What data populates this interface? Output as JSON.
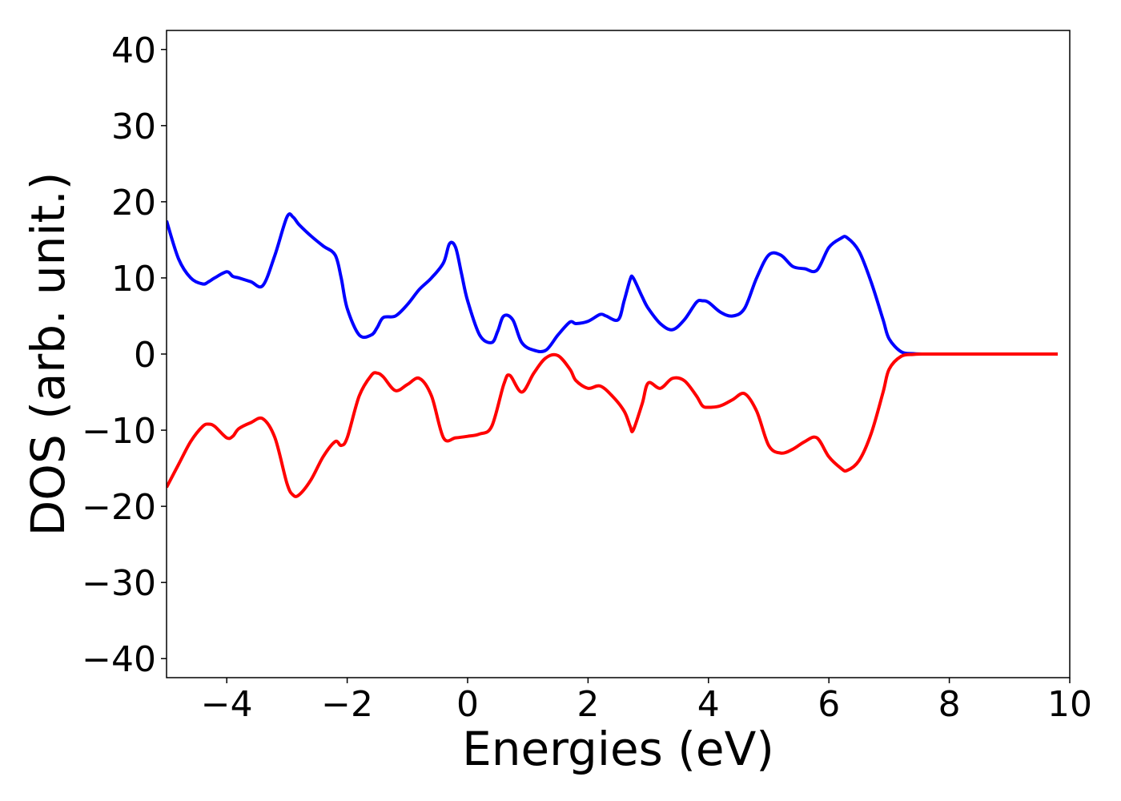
{
  "chart_data": {
    "type": "line",
    "title": "",
    "xlabel": "Energies (eV)",
    "ylabel": "DOS (arb. unit.)",
    "xlim": [
      -5,
      10
    ],
    "ylim": [
      -42.5,
      42.5
    ],
    "xticks": [
      -4,
      -2,
      0,
      2,
      4,
      6,
      8,
      10
    ],
    "xtick_labels": [
      "−4",
      "−2",
      "0",
      "2",
      "4",
      "6",
      "8",
      "10"
    ],
    "yticks": [
      40,
      30,
      20,
      10,
      0,
      -10,
      -20,
      -30,
      -40
    ],
    "ytick_labels": [
      "40",
      "30",
      "20",
      "10",
      "0",
      "−10",
      "−20",
      "−30",
      "−40"
    ],
    "grid": false,
    "legend": "none",
    "series": [
      {
        "color": "#0000ff",
        "x": [
          -5.0,
          -4.8,
          -4.6,
          -4.4,
          -4.3,
          -4.2,
          -4.0,
          -3.9,
          -3.8,
          -3.6,
          -3.4,
          -3.2,
          -3.0,
          -2.9,
          -2.8,
          -2.6,
          -2.4,
          -2.2,
          -2.1,
          -2.0,
          -1.8,
          -1.6,
          -1.5,
          -1.4,
          -1.2,
          -1.0,
          -0.8,
          -0.6,
          -0.4,
          -0.3,
          -0.2,
          -0.1,
          0.0,
          0.2,
          0.4,
          0.5,
          0.6,
          0.75,
          0.9,
          1.1,
          1.3,
          1.5,
          1.7,
          1.8,
          2.0,
          2.2,
          2.3,
          2.5,
          2.6,
          2.7,
          2.75,
          2.9,
          3.0,
          3.2,
          3.4,
          3.6,
          3.8,
          3.9,
          4.0,
          4.2,
          4.4,
          4.6,
          4.8,
          5.0,
          5.2,
          5.4,
          5.6,
          5.8,
          6.0,
          6.2,
          6.3,
          6.5,
          6.7,
          6.9,
          7.0,
          7.2,
          7.4,
          7.6,
          8.0,
          9.0,
          9.8
        ],
        "y": [
          17.5,
          12.5,
          10.0,
          9.2,
          9.5,
          10.0,
          10.8,
          10.2,
          10.0,
          9.5,
          9.0,
          13.0,
          18.0,
          18.0,
          17.0,
          15.5,
          14.2,
          13.0,
          10.0,
          6.0,
          2.5,
          2.5,
          3.5,
          4.8,
          5.0,
          6.5,
          8.5,
          10.0,
          12.0,
          14.5,
          14.0,
          10.5,
          7.0,
          2.5,
          1.5,
          3.0,
          5.0,
          4.5,
          1.5,
          0.5,
          0.5,
          2.5,
          4.2,
          4.0,
          4.3,
          5.2,
          5.0,
          4.5,
          7.0,
          9.8,
          10.0,
          7.5,
          6.0,
          4.0,
          3.2,
          4.5,
          6.8,
          7.0,
          6.8,
          5.5,
          5.0,
          6.0,
          10.0,
          13.0,
          13.0,
          11.5,
          11.2,
          11.0,
          14.0,
          15.2,
          15.3,
          13.5,
          9.5,
          4.5,
          2.0,
          0.3,
          0.05,
          0.0,
          0.0,
          0.0,
          0.0
        ]
      },
      {
        "color": "#ff0000",
        "x": [
          -5.0,
          -4.8,
          -4.6,
          -4.4,
          -4.3,
          -4.2,
          -4.0,
          -3.9,
          -3.8,
          -3.6,
          -3.4,
          -3.2,
          -3.0,
          -2.9,
          -2.8,
          -2.6,
          -2.4,
          -2.2,
          -2.1,
          -2.0,
          -1.8,
          -1.6,
          -1.5,
          -1.4,
          -1.2,
          -1.0,
          -0.8,
          -0.6,
          -0.4,
          -0.2,
          0.0,
          0.2,
          0.4,
          0.6,
          0.7,
          0.9,
          1.1,
          1.3,
          1.5,
          1.7,
          1.8,
          2.0,
          2.2,
          2.4,
          2.6,
          2.7,
          2.75,
          2.9,
          3.0,
          3.2,
          3.4,
          3.6,
          3.8,
          3.9,
          4.0,
          4.2,
          4.4,
          4.6,
          4.8,
          5.0,
          5.2,
          5.4,
          5.6,
          5.8,
          6.0,
          6.2,
          6.3,
          6.5,
          6.7,
          6.9,
          7.0,
          7.2,
          7.4,
          7.6,
          8.0,
          9.0,
          9.8
        ],
        "y": [
          -17.5,
          -14.5,
          -11.5,
          -9.5,
          -9.2,
          -9.5,
          -11.0,
          -10.8,
          -9.8,
          -9.0,
          -8.5,
          -11.0,
          -17.0,
          -18.5,
          -18.5,
          -16.5,
          -13.5,
          -11.5,
          -12.0,
          -11.0,
          -5.5,
          -2.8,
          -2.5,
          -3.0,
          -4.8,
          -4.0,
          -3.2,
          -5.5,
          -11.0,
          -11.0,
          -10.8,
          -10.5,
          -9.5,
          -4.0,
          -2.8,
          -5.0,
          -2.5,
          -0.5,
          -0.2,
          -2.0,
          -3.5,
          -4.5,
          -4.2,
          -5.5,
          -7.5,
          -9.5,
          -10.0,
          -6.5,
          -3.8,
          -4.5,
          -3.2,
          -3.5,
          -5.5,
          -6.8,
          -7.0,
          -6.8,
          -6.0,
          -5.2,
          -7.5,
          -12.0,
          -13.0,
          -12.5,
          -11.5,
          -11.0,
          -13.5,
          -15.0,
          -15.3,
          -14.0,
          -10.5,
          -5.0,
          -2.0,
          -0.3,
          -0.05,
          0.0,
          0.0,
          0.0,
          0.0
        ]
      }
    ]
  }
}
